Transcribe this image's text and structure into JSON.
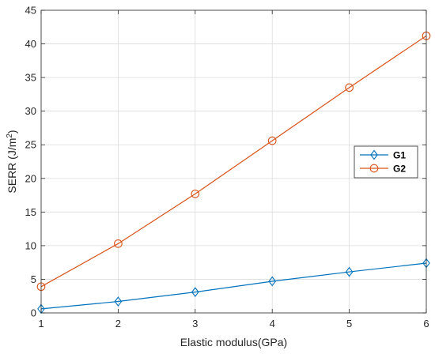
{
  "chart_data": {
    "type": "line",
    "x": [
      1,
      2,
      3,
      4,
      5,
      6
    ],
    "xlabel": "Elastic modulus(GPa)",
    "ylabel": "SERR (J/m²)",
    "xlim": [
      1,
      6
    ],
    "ylim": [
      0,
      45
    ],
    "xticks": [
      1,
      2,
      3,
      4,
      5,
      6
    ],
    "yticks": [
      0,
      5,
      10,
      15,
      20,
      25,
      30,
      35,
      40,
      45
    ],
    "grid": true,
    "legend_position": "right",
    "series": [
      {
        "name": "G1",
        "values": [
          0.6,
          1.7,
          3.1,
          4.7,
          6.1,
          7.4
        ],
        "color": "#0072BD",
        "marker": "diamond"
      },
      {
        "name": "G2",
        "values": [
          3.9,
          10.3,
          17.7,
          25.6,
          33.5,
          41.2
        ],
        "color": "#D95319",
        "marker": "circle"
      }
    ]
  }
}
